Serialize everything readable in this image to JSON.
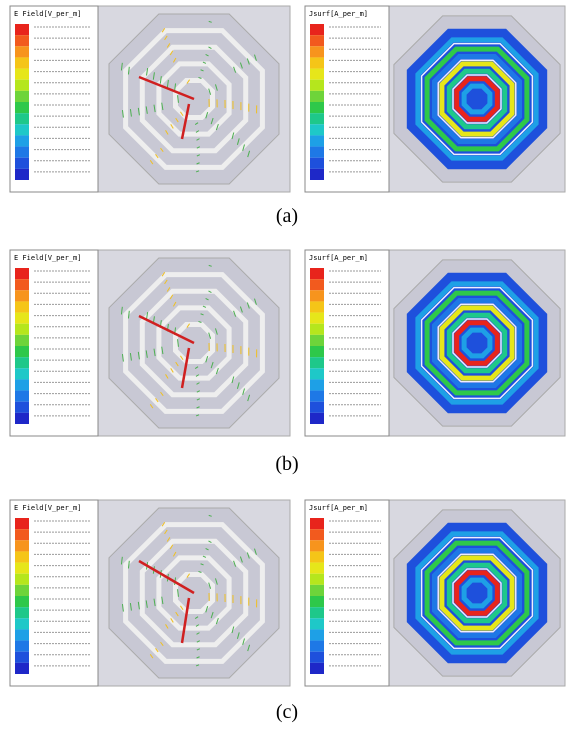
{
  "panels": [
    {
      "caption": "(a)",
      "left_legend": "E Field[V_per_m]",
      "right_legend": "Jsurf[A_per_m]"
    },
    {
      "caption": "(b)",
      "left_legend": "E Field[V_per_m]",
      "right_legend": "Jsurf[A_per_m]"
    },
    {
      "caption": "(c)",
      "left_legend": "E Field[V_per_m]",
      "right_legend": "Jsurf[A_per_m]"
    }
  ]
}
